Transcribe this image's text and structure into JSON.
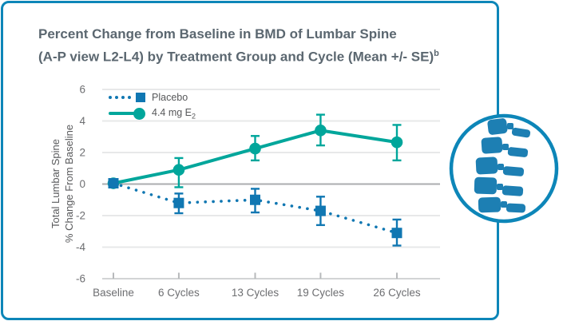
{
  "header": {
    "title_line1": "Percent Change from Baseline in BMD of Lumbar Spine",
    "title_line2": "(A-P view L2-L4) by Treatment Group and Cycle (Mean +/- SE)",
    "title_sup": "b"
  },
  "legend": {
    "placebo_label": "Placebo",
    "e2_label_main": "4.4 mg E",
    "e2_label_sub": "2"
  },
  "chart_data": {
    "type": "line",
    "title": "Percent Change from Baseline in BMD of Lumbar Spine (A-P view L2-L4) by Treatment Group and Cycle (Mean +/- SE)b",
    "ylabel_line1": "Total Lumbar Spine",
    "ylabel_line2": "% Change From Baseline",
    "xlabel": "",
    "categories": [
      "Baseline",
      "6 Cycles",
      "13 Cycles",
      "19 Cycles",
      "26 Cycles"
    ],
    "x_cycles": [
      0,
      6,
      13,
      19,
      26
    ],
    "ylim": [
      -6,
      6
    ],
    "yticks": [
      6,
      4,
      2,
      0,
      -2,
      -4,
      -6
    ],
    "grid": "horizontal",
    "legend_position": "top-left-inside",
    "series": [
      {
        "name": "4.4 mg E2",
        "marker": "circle",
        "line_style": "solid",
        "color": "#00a69b",
        "values": [
          0.05,
          0.9,
          2.25,
          3.4,
          2.65
        ],
        "err_up": [
          0,
          0.75,
          0.8,
          1.0,
          1.1
        ],
        "err_down": [
          0,
          1.1,
          0.75,
          0.95,
          1.15
        ]
      },
      {
        "name": "Placebo",
        "marker": "square",
        "line_style": "dotted",
        "color": "#1077b2",
        "values": [
          0.05,
          -1.2,
          -1.0,
          -1.7,
          -3.1
        ],
        "err_up": [
          0,
          0.6,
          0.7,
          0.9,
          0.85
        ],
        "err_down": [
          0,
          0.65,
          0.8,
          0.9,
          0.8
        ]
      }
    ]
  },
  "colors": {
    "card_border": "#0d86b8",
    "teal_series": "#00a69b",
    "blue_series": "#1077b2",
    "grid_light": "#e7e8e9",
    "grid_zero": "#abadaf",
    "axis_line": "#d2d4d5",
    "tick_text": "#6d6e71",
    "title_text": "#5b6770",
    "spine_icon": "#1d7fb3"
  },
  "icon": {
    "name": "lumbar-spine-icon"
  }
}
